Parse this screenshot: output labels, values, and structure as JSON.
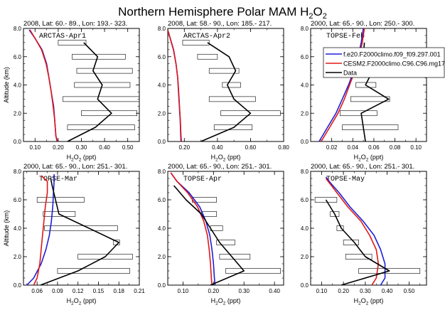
{
  "figure": {
    "title_main": "Northern Hemisphere Polar MAM H",
    "title_sub": "2",
    "title_tail": "O",
    "title_sub2": "2"
  },
  "legend": {
    "entries": [
      {
        "label": "f.e20.F2000climo.f09_f09.297.001",
        "color": "#1f1fd6"
      },
      {
        "label": "CESM2.F2000climo.C96.C96.mg17",
        "color": "#e01818"
      },
      {
        "label": "Data",
        "color": "#000000"
      }
    ]
  },
  "chart_data": [
    {
      "type": "line",
      "header": "2008, Lat:  60.- 89., Lon: 193.- 323.",
      "label": "ARCTAS-Apr1",
      "xlabel_main": "H",
      "xlabel_sub": "2",
      "xlabel_mid": "O",
      "xlabel_sub2": "2",
      "xlabel_unit": " (ppt)",
      "ylabel": "Altitude (km)",
      "xlim": [
        0.05,
        0.55
      ],
      "ylim": [
        0,
        8
      ],
      "xticks": [
        0.1,
        0.2,
        0.3,
        0.4,
        0.5
      ],
      "xtick_labels": [
        "0.10",
        "0.20",
        "0.30",
        "0.40",
        "0.50"
      ],
      "yticks": [
        0,
        2,
        4,
        6,
        8
      ],
      "ytick_labels": [
        "0.0",
        "2.0",
        "4.0",
        "6.0",
        "8.0"
      ],
      "series": [
        {
          "color": "#1f1fd6",
          "x": [
            0.195,
            0.19,
            0.185,
            0.18,
            0.17,
            0.16,
            0.15,
            0.13,
            0.1,
            0.075
          ],
          "y": [
            0.0,
            0.4,
            1.5,
            2.5,
            3.5,
            4.5,
            5.5,
            6.5,
            7.3,
            7.9
          ]
        },
        {
          "color": "#e01818",
          "x": [
            0.198,
            0.19,
            0.185,
            0.178,
            0.17,
            0.16,
            0.148,
            0.128,
            0.1,
            0.078
          ],
          "y": [
            0.0,
            0.4,
            1.5,
            2.5,
            3.5,
            4.5,
            5.5,
            6.5,
            7.3,
            7.9
          ]
        },
        {
          "color": "#000000",
          "x": [
            0.24,
            0.36,
            0.43,
            0.37,
            0.39,
            0.35,
            0.37,
            0.31
          ],
          "y": [
            0.0,
            1.0,
            2.0,
            3.0,
            4.0,
            5.0,
            6.0,
            7.0
          ]
        }
      ],
      "ranges": [
        {
          "y": 7.0,
          "lo": 0.2,
          "hi": 0.32
        },
        {
          "y": 6.0,
          "lo": 0.26,
          "hi": 0.49
        },
        {
          "y": 5.0,
          "lo": 0.28,
          "hi": 0.52
        },
        {
          "y": 4.0,
          "lo": 0.27,
          "hi": 0.51
        },
        {
          "y": 3.0,
          "lo": 0.22,
          "hi": 0.56
        },
        {
          "y": 2.0,
          "lo": 0.3,
          "hi": 0.54
        },
        {
          "y": 1.0,
          "lo": 0.24,
          "hi": 0.53
        }
      ]
    },
    {
      "type": "line",
      "header": "2008, Lat:  58.- 90., Lon: 185.- 217.",
      "label": "ARCTAS-Apr2",
      "xlabel_main": "H",
      "xlabel_sub": "2",
      "xlabel_mid": "O",
      "xlabel_sub2": "2",
      "xlabel_unit": " (ppt)",
      "ylabel": "",
      "xlim": [
        0.1,
        0.8
      ],
      "ylim": [
        0,
        8
      ],
      "xticks": [
        0.2,
        0.4,
        0.6,
        0.8
      ],
      "xtick_labels": [
        "0.20",
        "0.40",
        "0.60",
        "0.80"
      ],
      "yticks": [
        0,
        2,
        4,
        6,
        8
      ],
      "ytick_labels": [
        "0.0",
        "2.0",
        "4.0",
        "6.0",
        "8.0"
      ],
      "series": [
        {
          "color": "#1f1fd6",
          "x": [
            0.18,
            0.178,
            0.175,
            0.17,
            0.165,
            0.16,
            0.15,
            0.135,
            0.115,
            0.1
          ],
          "y": [
            0.0,
            0.4,
            1.5,
            2.5,
            3.5,
            4.5,
            5.5,
            6.5,
            7.3,
            7.9
          ]
        },
        {
          "color": "#e01818",
          "x": [
            0.183,
            0.18,
            0.176,
            0.171,
            0.166,
            0.16,
            0.15,
            0.134,
            0.114,
            0.1
          ],
          "y": [
            0.0,
            0.4,
            1.5,
            2.5,
            3.5,
            4.5,
            5.5,
            6.5,
            7.3,
            7.9
          ]
        },
        {
          "color": "#000000",
          "x": [
            0.3,
            0.5,
            0.6,
            0.5,
            0.46,
            0.51,
            0.47,
            0.34
          ],
          "y": [
            0.0,
            1.0,
            2.0,
            3.0,
            4.0,
            5.0,
            6.0,
            7.0
          ]
        }
      ],
      "ranges": [
        {
          "y": 7.0,
          "lo": 0.19,
          "hi": 0.35
        },
        {
          "y": 6.0,
          "lo": 0.28,
          "hi": 0.4
        },
        {
          "y": 5.0,
          "lo": 0.35,
          "hi": 0.53
        },
        {
          "y": 4.0,
          "lo": 0.43,
          "hi": 0.54
        },
        {
          "y": 3.0,
          "lo": 0.35,
          "hi": 0.63
        },
        {
          "y": 2.0,
          "lo": 0.42,
          "hi": 0.78
        },
        {
          "y": 1.0,
          "lo": 0.38,
          "hi": 0.61
        }
      ]
    },
    {
      "type": "line",
      "header": "2000, Lat:  65.- 90., Lon: 250.- 300.",
      "label": "TOPSE-Feb",
      "xlabel_main": "H",
      "xlabel_sub": "2",
      "xlabel_mid": "O",
      "xlabel_sub2": "2",
      "xlabel_unit": " (ppt)",
      "ylabel": "",
      "xlim": [
        0.0,
        0.11
      ],
      "ylim": [
        0,
        8
      ],
      "xticks": [
        0.02,
        0.04,
        0.06,
        0.08,
        0.1
      ],
      "xtick_labels": [
        "0.02",
        "0.04",
        "0.06",
        "0.08",
        "0.10"
      ],
      "yticks": [
        0,
        2,
        4,
        6,
        8
      ],
      "ytick_labels": [
        "0.0",
        "2.0",
        "4.0",
        "6.0",
        "8.0"
      ],
      "series": [
        {
          "color": "#1f1fd6",
          "x": [
            0.008,
            0.016,
            0.024,
            0.03,
            0.036,
            0.041,
            0.045,
            0.048,
            0.05
          ],
          "y": [
            0.0,
            1.0,
            2.0,
            3.0,
            4.0,
            5.0,
            6.0,
            7.0,
            8.0
          ]
        },
        {
          "color": "#e01818",
          "x": [
            0.01,
            0.018,
            0.026,
            0.032,
            0.037,
            0.042,
            0.046,
            0.049,
            0.051
          ],
          "y": [
            0.0,
            1.0,
            2.0,
            3.0,
            4.0,
            5.0,
            6.0,
            7.0,
            8.0
          ]
        },
        {
          "color": "#000000",
          "x": [
            0.052,
            0.05,
            0.048,
            0.074,
            0.052,
            0.059,
            0.05,
            0.051
          ],
          "y": [
            0.0,
            1.0,
            2.0,
            3.0,
            4.0,
            5.0,
            6.0,
            7.0
          ]
        }
      ],
      "ranges": [
        {
          "y": 6.0,
          "lo": 0.042,
          "hi": 0.1
        },
        {
          "y": 4.0,
          "lo": 0.043,
          "hi": 0.062
        },
        {
          "y": 3.0,
          "lo": 0.038,
          "hi": 0.075
        },
        {
          "y": 2.0,
          "lo": 0.028,
          "hi": 0.063
        },
        {
          "y": 1.0,
          "lo": 0.03,
          "hi": 0.083
        }
      ]
    },
    {
      "type": "line",
      "header": "2000, Lat:  65.- 90., Lon: 251.- 301.",
      "label": "TOPSE-Mar",
      "xlabel_main": "H",
      "xlabel_sub": "2",
      "xlabel_mid": "O",
      "xlabel_sub2": "2",
      "xlabel_unit": " (ppt)",
      "ylabel": "Altitude (km)",
      "xlim": [
        0.04,
        0.21
      ],
      "ylim": [
        0,
        8
      ],
      "xticks": [
        0.06,
        0.09,
        0.12,
        0.15,
        0.18,
        0.21
      ],
      "xtick_labels": [
        "0.06",
        "0.09",
        "0.12",
        "0.15",
        "0.18",
        "0.21"
      ],
      "yticks": [
        0,
        2,
        4,
        6,
        8
      ],
      "ytick_labels": [
        "0.0",
        "2.0",
        "4.0",
        "6.0",
        "8.0"
      ],
      "series": [
        {
          "color": "#1f1fd6",
          "x": [
            0.045,
            0.055,
            0.066,
            0.073,
            0.078,
            0.081,
            0.083,
            0.084,
            0.085,
            0.085
          ],
          "y": [
            0.0,
            0.5,
            1.5,
            2.5,
            3.5,
            4.5,
            5.5,
            6.5,
            7.3,
            7.8
          ]
        },
        {
          "color": "#e01818",
          "x": [
            0.055,
            0.06,
            0.064,
            0.066,
            0.068,
            0.07,
            0.072,
            0.075,
            0.075,
            0.066
          ],
          "y": [
            0.0,
            0.5,
            1.5,
            2.5,
            3.5,
            4.5,
            5.5,
            6.5,
            7.3,
            7.7
          ]
        },
        {
          "color": "#000000",
          "x": [
            0.065,
            0.12,
            0.16,
            0.18,
            0.092,
            0.087,
            0.082,
            0.08
          ],
          "y": [
            0.0,
            1.0,
            2.0,
            3.0,
            5.0,
            6.0,
            7.0,
            7.5
          ]
        }
      ],
      "ranges": [
        {
          "y": 6.0,
          "lo": 0.06,
          "hi": 0.129
        },
        {
          "y": 5.0,
          "lo": 0.069,
          "hi": 0.116
        },
        {
          "y": 4.0,
          "lo": 0.071,
          "hi": 0.178
        },
        {
          "y": 3.0,
          "lo": 0.172,
          "hi": 0.181
        },
        {
          "y": 2.0,
          "lo": 0.12,
          "hi": 0.2
        },
        {
          "y": 1.0,
          "lo": 0.09,
          "hi": 0.196
        }
      ]
    },
    {
      "type": "line",
      "header": "2000, Lat:  65.- 90., Lon: 251.- 301.",
      "label": "TOPSE-Apr",
      "xlabel_main": "H",
      "xlabel_sub": "2",
      "xlabel_mid": "O",
      "xlabel_sub2": "2",
      "xlabel_unit": " (ppt)",
      "ylabel": "",
      "xlim": [
        0.05,
        0.43
      ],
      "ylim": [
        0,
        8
      ],
      "xticks": [
        0.1,
        0.2,
        0.3,
        0.4
      ],
      "xtick_labels": [
        "0.10",
        "0.20",
        "0.30",
        "0.40"
      ],
      "yticks": [
        0,
        2,
        4,
        6,
        8
      ],
      "ytick_labels": [
        "0.0",
        "2.0",
        "4.0",
        "6.0",
        "8.0"
      ],
      "series": [
        {
          "color": "#1f1fd6",
          "x": [
            0.205,
            0.203,
            0.2,
            0.195,
            0.188,
            0.175,
            0.155,
            0.12,
            0.08,
            0.06
          ],
          "y": [
            0.0,
            0.5,
            1.5,
            2.5,
            3.5,
            4.5,
            5.5,
            6.5,
            7.3,
            7.9
          ]
        },
        {
          "color": "#e01818",
          "x": [
            0.195,
            0.193,
            0.19,
            0.186,
            0.18,
            0.168,
            0.148,
            0.115,
            0.08,
            0.06
          ],
          "y": [
            0.0,
            0.5,
            1.5,
            2.5,
            3.5,
            4.5,
            5.5,
            6.5,
            7.3,
            7.9
          ]
        },
        {
          "color": "#000000",
          "x": [
            0.19,
            0.3,
            0.26,
            0.22,
            0.19,
            0.16,
            0.11,
            0.07
          ],
          "y": [
            0.0,
            1.0,
            2.0,
            3.0,
            4.0,
            5.0,
            6.0,
            7.0
          ]
        }
      ],
      "ranges": [
        {
          "y": 6.0,
          "lo": 0.13,
          "hi": 0.21
        },
        {
          "y": 5.0,
          "lo": 0.16,
          "hi": 0.21
        },
        {
          "y": 4.0,
          "lo": 0.19,
          "hi": 0.23
        },
        {
          "y": 3.0,
          "lo": 0.21,
          "hi": 0.27
        },
        {
          "y": 2.0,
          "lo": 0.22,
          "hi": 0.32
        },
        {
          "y": 1.0,
          "lo": 0.24,
          "hi": 0.42
        }
      ]
    },
    {
      "type": "line",
      "header": "2000, Lat:  65.- 90., Lon: 251.- 301.",
      "label": "TOPSE-May",
      "xlabel_main": "H",
      "xlabel_sub": "2",
      "xlabel_mid": "O",
      "xlabel_sub2": "2",
      "xlabel_unit": " (ppt)",
      "ylabel": "",
      "xlim": [
        0.05,
        0.58
      ],
      "ylim": [
        0,
        8
      ],
      "xticks": [
        0.1,
        0.2,
        0.3,
        0.4,
        0.5
      ],
      "xtick_labels": [
        "0.10",
        "0.20",
        "0.30",
        "0.40",
        "0.50"
      ],
      "yticks": [
        0,
        2,
        4,
        6,
        8
      ],
      "ytick_labels": [
        "0.0",
        "2.0",
        "4.0",
        "6.0",
        "8.0"
      ],
      "series": [
        {
          "color": "#1f1fd6",
          "x": [
            0.37,
            0.39,
            0.39,
            0.37,
            0.34,
            0.29,
            0.23,
            0.18,
            0.14,
            0.12
          ],
          "y": [
            0.0,
            0.5,
            1.5,
            2.5,
            3.5,
            4.5,
            5.5,
            6.5,
            7.2,
            7.6
          ]
        },
        {
          "color": "#e01818",
          "x": [
            0.33,
            0.35,
            0.36,
            0.35,
            0.32,
            0.28,
            0.22,
            0.17,
            0.14,
            0.12
          ],
          "y": [
            0.0,
            0.5,
            1.5,
            2.5,
            3.5,
            4.5,
            5.5,
            6.5,
            7.1,
            7.5
          ]
        },
        {
          "color": "#000000",
          "x": [
            0.19,
            0.41,
            0.3,
            0.25,
            0.19,
            0.16,
            0.12
          ],
          "y": [
            0.0,
            1.0,
            2.0,
            3.0,
            4.0,
            5.0,
            6.0
          ]
        }
      ],
      "ranges": [
        {
          "y": 6.0,
          "lo": 0.07,
          "hi": 0.17
        },
        {
          "y": 5.0,
          "lo": 0.14,
          "hi": 0.18
        },
        {
          "y": 4.0,
          "lo": 0.17,
          "hi": 0.2
        },
        {
          "y": 3.0,
          "lo": 0.2,
          "hi": 0.27
        },
        {
          "y": 2.0,
          "lo": 0.21,
          "hi": 0.33
        },
        {
          "y": 1.0,
          "lo": 0.27,
          "hi": 0.55
        }
      ]
    }
  ]
}
